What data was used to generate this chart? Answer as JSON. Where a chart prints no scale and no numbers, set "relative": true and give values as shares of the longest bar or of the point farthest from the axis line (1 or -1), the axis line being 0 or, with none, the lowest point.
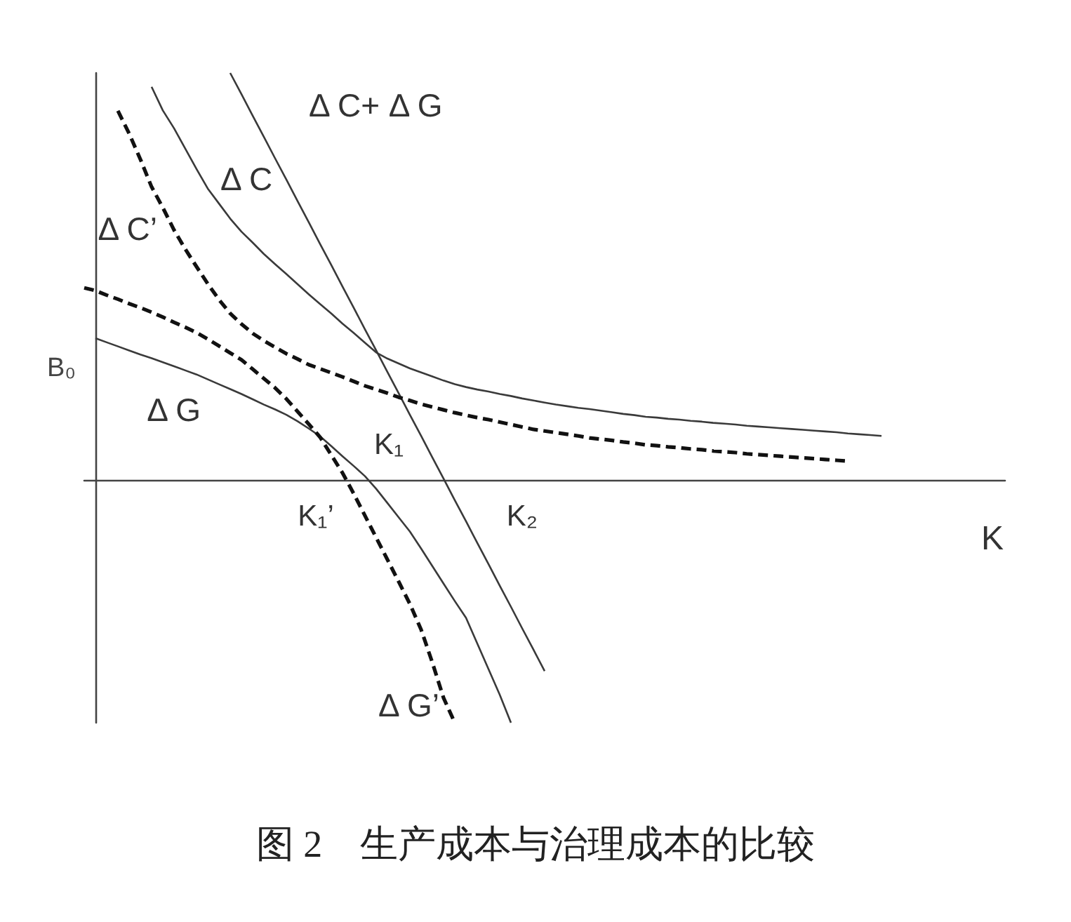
{
  "chart_data": {
    "type": "line",
    "title": "图 2　生产成本与治理成本的比较",
    "xlabel": "K",
    "ylabel": "B₀",
    "relative": true,
    "legend": false,
    "grid": false,
    "marker": "none",
    "categories": [
      null,
      null,
      null,
      null,
      null,
      null,
      null,
      null,
      null,
      null,
      null,
      null,
      null,
      null,
      null,
      null,
      null,
      null,
      null,
      null,
      null,
      null,
      null,
      null,
      null,
      null,
      null,
      null,
      null,
      null,
      null,
      null,
      null,
      null,
      null,
      null,
      null,
      null,
      null,
      null,
      null,
      null,
      null,
      null,
      null,
      null,
      null,
      null,
      null,
      null,
      null,
      null,
      null,
      null,
      null,
      null,
      null,
      null,
      null,
      null,
      null,
      null,
      null,
      null,
      null,
      null,
      null,
      null,
      null,
      null,
      null,
      null,
      null,
      null,
      null,
      null,
      null,
      null,
      null,
      null,
      null,
      null,
      null
    ],
    "series": [
      {
        "name": "Δ C+ Δ G",
        "color": "#3a3a3a",
        "line_style": "solid",
        "values": [
          null,
          null,
          null,
          null,
          null,
          null,
          null,
          null,
          null,
          null,
          null,
          null,
          null,
          1,
          0.948,
          0.895,
          0.843,
          0.79,
          0.738,
          0.685,
          0.633,
          0.58,
          0.528,
          0.475,
          0.423,
          0.37,
          0.318,
          0.265,
          0.213,
          0.16,
          0.108,
          0.055,
          0.003,
          -0.05,
          -0.102,
          -0.155,
          -0.207,
          -0.26,
          -0.312,
          -0.365,
          -0.417,
          -0.47,
          null,
          null,
          null,
          null,
          null,
          null,
          null,
          null,
          null,
          null,
          null,
          null,
          null,
          null,
          null,
          null,
          null,
          null,
          null,
          null,
          null,
          null,
          null,
          null,
          null,
          null,
          null,
          null,
          null,
          null,
          null,
          null,
          null,
          null,
          null,
          null,
          null,
          null,
          null,
          null,
          null
        ]
      },
      {
        "name": "Δ C",
        "color": "#3a3a3a",
        "line_style": "solid",
        "values": [
          null,
          null,
          null,
          null,
          null,
          null,
          0.966,
          0.908,
          0.864,
          0.814,
          0.764,
          0.716,
          0.679,
          0.642,
          0.61,
          0.583,
          0.555,
          0.53,
          0.506,
          0.481,
          0.456,
          0.432,
          0.409,
          0.384,
          0.361,
          0.337,
          0.313,
          0.298,
          0.286,
          0.274,
          0.264,
          0.254,
          0.244,
          0.235,
          0.228,
          0.222,
          0.217,
          0.211,
          0.206,
          0.2,
          0.195,
          0.19,
          0.185,
          0.181,
          0.177,
          0.174,
          0.17,
          0.166,
          0.162,
          0.159,
          0.155,
          0.153,
          0.15,
          0.148,
          0.145,
          0.143,
          0.14,
          0.138,
          0.136,
          0.133,
          0.131,
          0.129,
          0.127,
          0.125,
          0.123,
          0.121,
          0.119,
          0.117,
          0.114,
          0.112,
          0.11,
          0.108,
          null,
          null,
          null,
          null,
          null,
          null,
          null,
          null,
          null,
          null,
          null
        ]
      },
      {
        "name": "Δ C’",
        "color": "#111111",
        "line_style": "dashed",
        "values": [
          null,
          null,
          null,
          0.907,
          0.851,
          0.788,
          0.72,
          0.669,
          0.614,
          0.567,
          0.524,
          0.482,
          0.443,
          0.409,
          0.383,
          0.36,
          0.342,
          0.326,
          0.31,
          0.297,
          0.283,
          0.273,
          0.263,
          0.253,
          0.242,
          0.231,
          0.222,
          0.213,
          0.203,
          0.195,
          0.186,
          0.179,
          0.172,
          0.165,
          0.159,
          0.153,
          0.148,
          0.142,
          0.136,
          0.13,
          0.124,
          0.12,
          0.116,
          0.112,
          0.108,
          0.103,
          0.1,
          0.097,
          0.093,
          0.09,
          0.086,
          0.084,
          0.081,
          0.079,
          0.076,
          0.074,
          0.071,
          0.069,
          0.067,
          0.064,
          0.062,
          0.06,
          0.058,
          0.056,
          0.054,
          0.052,
          0.05,
          0.048,
          0.046,
          null,
          null,
          null,
          null,
          null,
          null,
          null,
          null,
          null,
          null,
          null,
          null,
          null,
          null
        ]
      },
      {
        "name": "Δ G",
        "color": "#3a3a3a",
        "line_style": "solid",
        "values": [
          null,
          0.348,
          0.338,
          0.328,
          0.318,
          0.308,
          0.299,
          0.289,
          0.279,
          0.269,
          0.259,
          0.247,
          0.235,
          0.223,
          0.211,
          0.198,
          0.185,
          0.173,
          0.16,
          0.144,
          0.126,
          0.107,
          0.083,
          0.058,
          0.034,
          0.009,
          -0.022,
          -0.057,
          -0.092,
          -0.127,
          -0.169,
          -0.212,
          -0.255,
          -0.298,
          -0.339,
          -0.402,
          -0.465,
          -0.528,
          -0.597,
          null,
          null,
          null,
          null,
          null,
          null,
          null,
          null,
          null,
          null,
          null,
          null,
          null,
          null,
          null,
          null,
          null,
          null,
          null,
          null,
          null,
          null,
          null,
          null,
          null,
          null,
          null,
          null,
          null,
          null,
          null,
          null,
          null,
          null,
          null,
          null,
          null,
          null,
          null,
          null,
          null,
          null,
          null,
          null
        ]
      },
      {
        "name": "Δ G’",
        "color": "#111111",
        "line_style": "dashed",
        "values": [
          0.472,
          0.465,
          0.454,
          0.444,
          0.433,
          0.423,
          0.412,
          0.4,
          0.387,
          0.375,
          0.362,
          0.346,
          0.329,
          0.312,
          0.295,
          0.272,
          0.249,
          0.226,
          0.199,
          0.168,
          0.137,
          0.105,
          0.061,
          0.017,
          -0.034,
          -0.088,
          -0.142,
          -0.196,
          -0.25,
          -0.305,
          -0.368,
          -0.449,
          -0.536,
          -0.597,
          null,
          null,
          null,
          null,
          null,
          null,
          null,
          null,
          null,
          null,
          null,
          null,
          null,
          null,
          null,
          null,
          null,
          null,
          null,
          null,
          null,
          null,
          null,
          null,
          null,
          null,
          null,
          null,
          null,
          null,
          null,
          null,
          null,
          null,
          null,
          null,
          null,
          null,
          null,
          null,
          null,
          null,
          null,
          null,
          null,
          null,
          null,
          null,
          null
        ]
      }
    ],
    "annotations": [
      "K₁",
      "K₁’",
      "K₂"
    ]
  }
}
